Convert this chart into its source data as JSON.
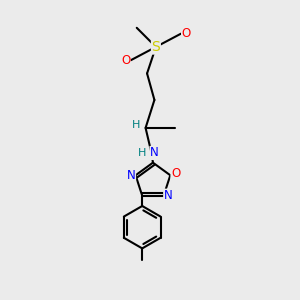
{
  "bg_color": "#ebebeb",
  "bond_color": "#000000",
  "bond_width": 1.5,
  "atom_colors": {
    "C": "#000000",
    "N": "#0000ff",
    "O": "#ff0000",
    "S": "#cccc00",
    "H": "#008080"
  },
  "font_size": 8.5,
  "fig_width": 3.0,
  "fig_height": 3.0,
  "dpi": 100
}
